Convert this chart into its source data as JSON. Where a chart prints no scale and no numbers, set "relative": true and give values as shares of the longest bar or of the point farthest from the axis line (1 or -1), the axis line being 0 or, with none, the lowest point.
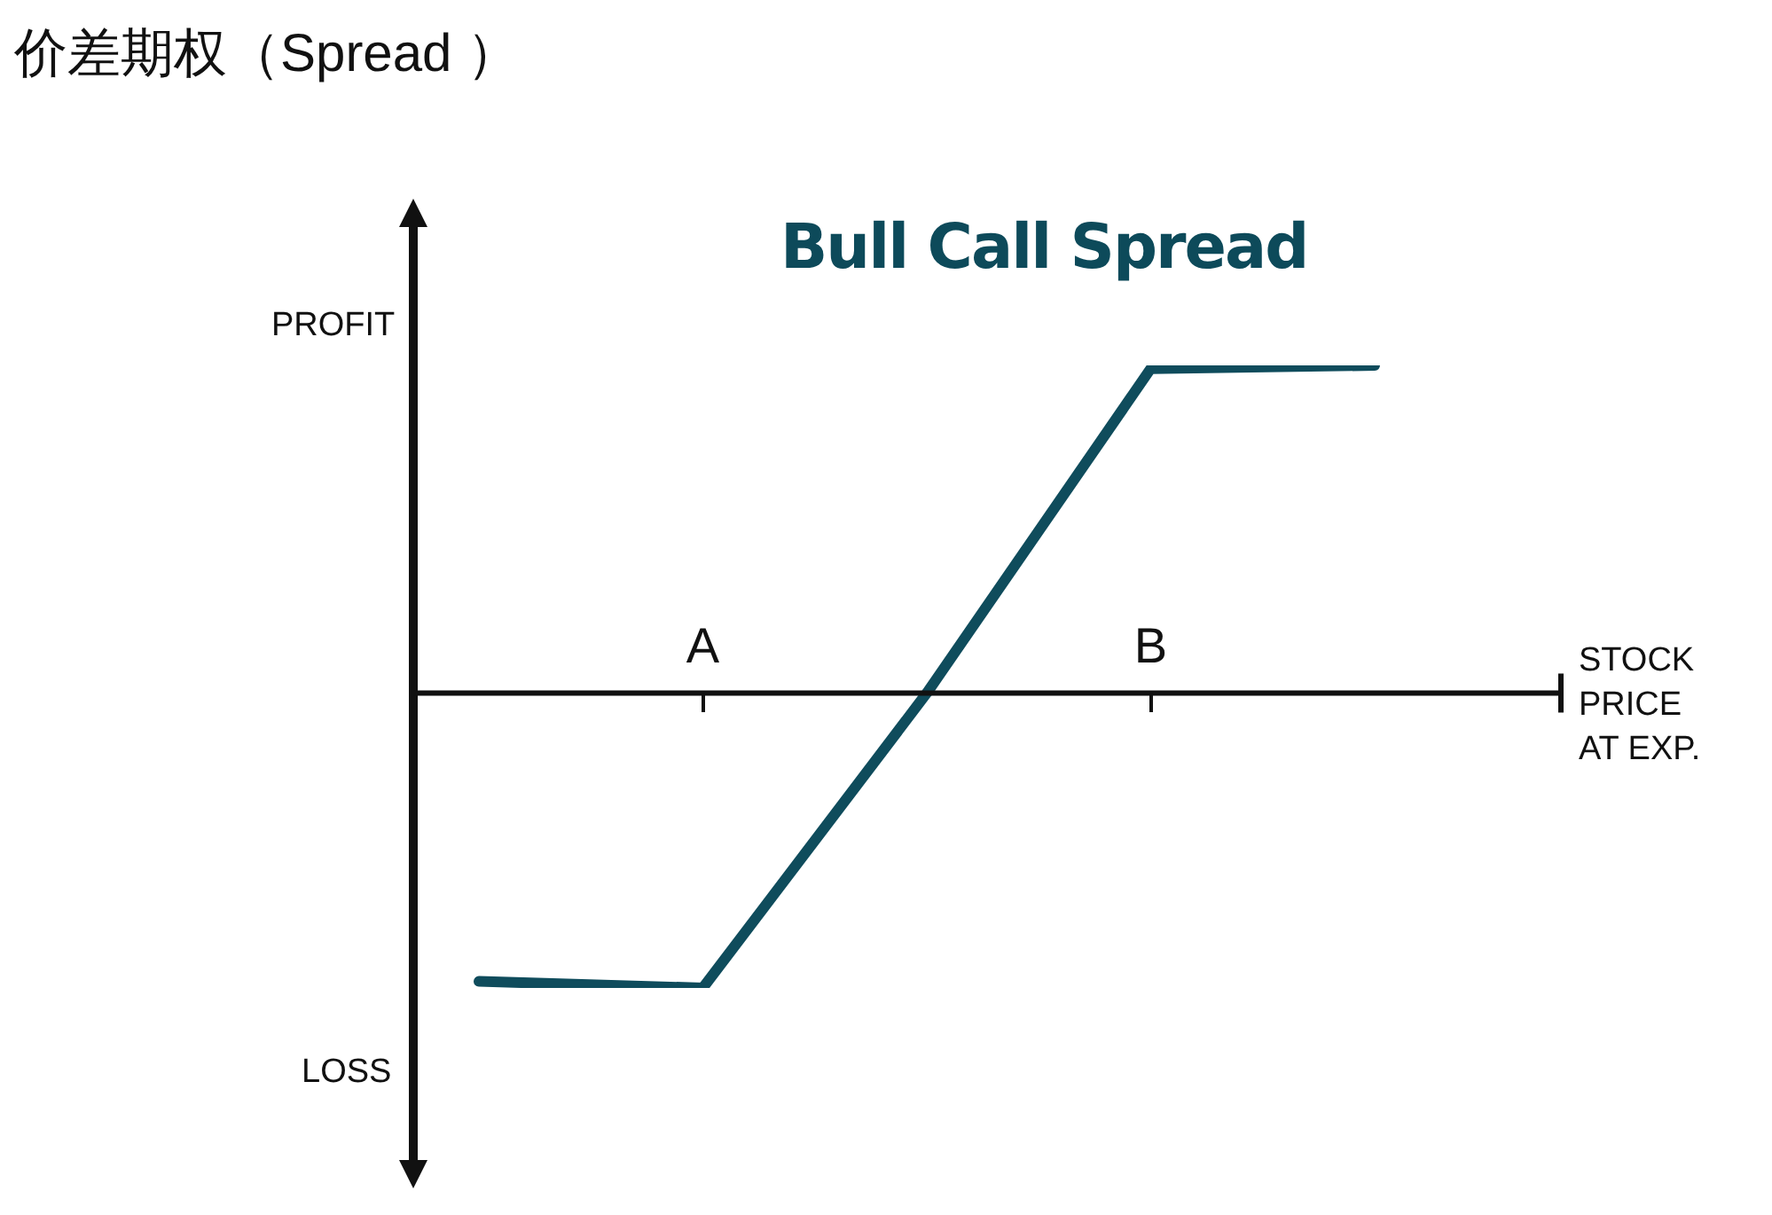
{
  "chart_data": {
    "type": "line",
    "title": "价差期权（Spread ）",
    "subtitle": "Bull Call Spread",
    "xlabel": "STOCK PRICE AT EXP.",
    "annotations": [
      "PROFIT",
      "LOSS"
    ],
    "categories": [
      null,
      "A",
      null,
      "B",
      null
    ],
    "relative": true,
    "values": [
      -0.88,
      -0.9,
      0,
      0.99,
      1
    ],
    "color": "#0f4c5c"
  }
}
